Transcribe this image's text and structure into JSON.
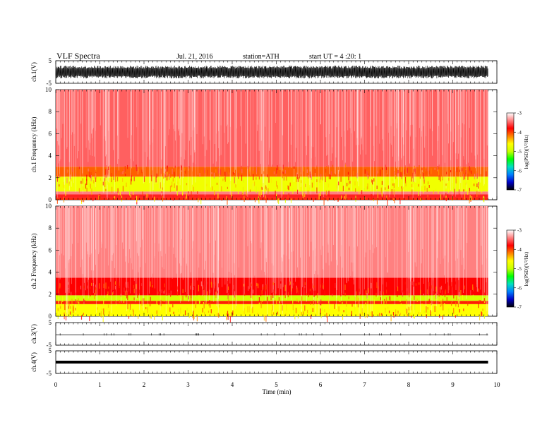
{
  "header": {
    "title": "VLF Spectra",
    "date": "Jul. 21, 2016",
    "station": "station=ATH",
    "start": "start UT = 4 :20: 1"
  },
  "colors": {
    "waveform": "#000000",
    "colorbar": [
      "#000000",
      "#0000c8",
      "#0080ff",
      "#00e0c0",
      "#00ff00",
      "#c8ff00",
      "#ffff00",
      "#ff8000",
      "#ff0000",
      "#ff8080",
      "#ffffff"
    ]
  },
  "chart_data": [
    {
      "type": "line",
      "panel": "ch1-waveform",
      "ylabel": "ch.1(V)",
      "ylim": [
        -5,
        5
      ],
      "yticks": [
        "5",
        "-5"
      ],
      "xlim": [
        0,
        10
      ],
      "x": [
        0,
        9.8
      ],
      "y_envelope_min": [
        -2.8,
        -2.8
      ],
      "y_envelope_max": [
        2.8,
        2.8
      ]
    },
    {
      "type": "heatmap",
      "panel": "ch1-spectrogram",
      "ylabel": "ch.1 Frequency (kHz)",
      "ylim": [
        0,
        10
      ],
      "yticks": [
        "0",
        "2",
        "4",
        "6",
        "8",
        "10"
      ],
      "xlim": [
        0,
        10
      ],
      "data_end_min": 9.8,
      "colorbar": {
        "label": "log(PSD)(V²/Hz)",
        "range": [
          -7,
          -3
        ],
        "ticks": [
          "-3",
          "-4",
          "-5",
          "-6",
          "-7"
        ]
      },
      "freq_bands_khz": [
        {
          "f0": 0.0,
          "f1": 0.15,
          "log_psd": -3.9
        },
        {
          "f0": 0.15,
          "f1": 0.5,
          "log_psd": -3.7
        },
        {
          "f0": 0.5,
          "f1": 0.75,
          "log_psd": -3.4
        },
        {
          "f0": 0.75,
          "f1": 2.1,
          "log_psd": -4.7
        },
        {
          "f0": 2.1,
          "f1": 3.0,
          "log_psd": -4.1
        },
        {
          "f0": 3.0,
          "f1": 10.0,
          "log_psd": -3.5
        }
      ]
    },
    {
      "type": "heatmap",
      "panel": "ch2-spectrogram",
      "ylabel": "ch.2 Frequency (kHz)",
      "ylim": [
        0,
        10
      ],
      "yticks": [
        "0",
        "2",
        "4",
        "6",
        "8",
        "10"
      ],
      "xlim": [
        0,
        10
      ],
      "data_end_min": 9.8,
      "colorbar": {
        "label": "log(PSD)(V²/Hz)",
        "range": [
          -7,
          -3
        ],
        "ticks": [
          "-3",
          "-4",
          "-5",
          "-6",
          "-7"
        ]
      },
      "freq_bands_khz": [
        {
          "f0": 0.0,
          "f1": 1.1,
          "log_psd": -4.6
        },
        {
          "f0": 1.1,
          "f1": 1.4,
          "log_psd": -3.9
        },
        {
          "f0": 1.4,
          "f1": 1.9,
          "log_psd": -4.9
        },
        {
          "f0": 1.9,
          "f1": 3.5,
          "log_psd": -3.8
        },
        {
          "f0": 3.5,
          "f1": 10.0,
          "log_psd": -3.4
        }
      ]
    },
    {
      "type": "line",
      "panel": "ch3-waveform",
      "ylabel": "ch.3(V)",
      "ylim": [
        -5,
        5
      ],
      "yticks": [
        "5",
        "-5"
      ],
      "xlim": [
        0,
        10
      ],
      "x": [
        0,
        9.8
      ],
      "y": [
        -0.4,
        -0.4
      ]
    },
    {
      "type": "line",
      "panel": "ch4-waveform",
      "ylabel": "ch.4(V)",
      "ylim": [
        -5,
        5
      ],
      "yticks": [
        "5",
        "-5"
      ],
      "xlim": [
        0,
        10
      ],
      "xlabel": "Time (min)",
      "xticks": [
        "0",
        "1",
        "2",
        "3",
        "4",
        "5",
        "6",
        "7",
        "8",
        "9",
        "10"
      ],
      "x": [
        0,
        9.8
      ],
      "y": [
        0,
        0
      ]
    }
  ]
}
